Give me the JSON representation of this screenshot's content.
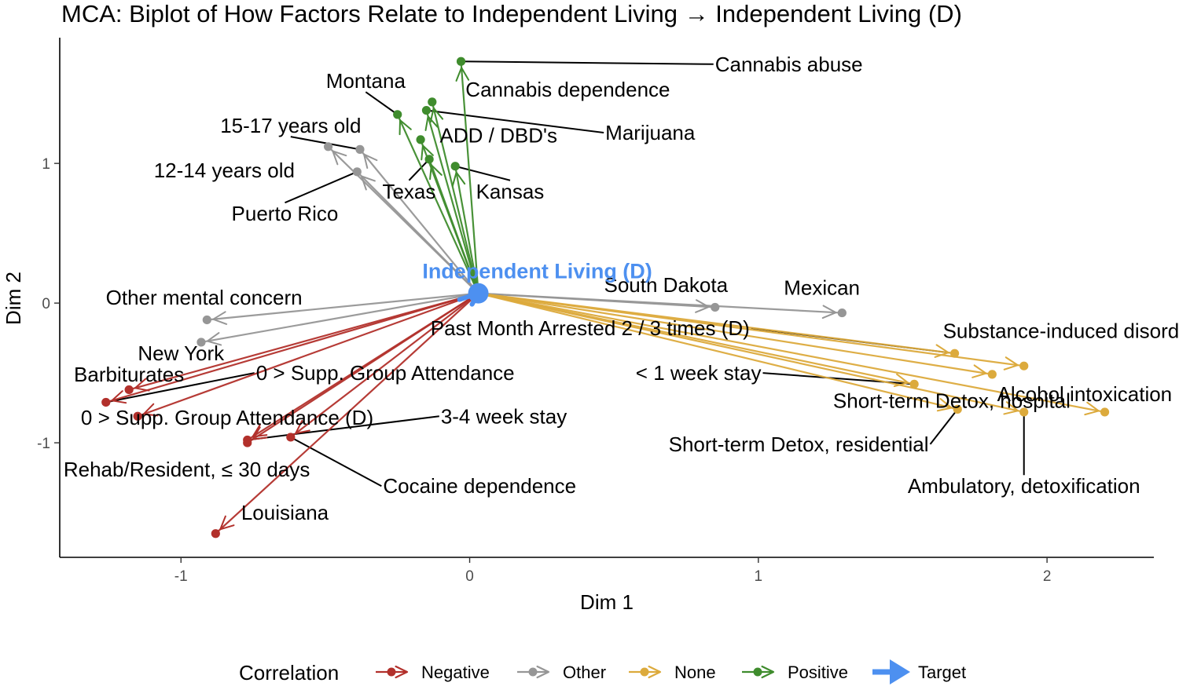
{
  "colors": {
    "Negative": "#b2302b",
    "Other": "#969696",
    "None": "#dcaa3c",
    "Positive": "#3f8c2d",
    "Target": "#4d90f0"
  },
  "chart_data": {
    "type": "scatter",
    "title": "MCA: Biplot of How Factors Relate to Independent Living → Independent Living (D)",
    "xlabel": "Dim 1",
    "ylabel": "Dim 2",
    "xlim": [
      -1.42,
      2.37
    ],
    "ylim": [
      -1.82,
      1.9
    ],
    "xticks": [
      -1,
      0,
      1,
      2
    ],
    "yticks": [
      -1,
      0,
      1
    ],
    "grid": false,
    "legend_title": "Correlation",
    "legend_position": "bottom",
    "legend": [
      "Negative",
      "Other",
      "None",
      "Positive",
      "Target"
    ],
    "target": {
      "label": "Independent Living (D)",
      "x": 0.03,
      "y": 0.07
    },
    "points": [
      {
        "label": "Cannabis abuse",
        "group": "Positive",
        "x": -0.03,
        "y": 1.73,
        "lx": 0.85,
        "ly": 1.71,
        "anchor": "start"
      },
      {
        "label": "Cannabis dependence",
        "group": "Positive",
        "x": -0.13,
        "y": 1.44,
        "lx": 0.34,
        "ly": 1.53,
        "anchor": "middle",
        "noleader": true
      },
      {
        "label": "Montana",
        "group": "Positive",
        "x": -0.25,
        "y": 1.35,
        "lx": -0.36,
        "ly": 1.59,
        "anchor": "middle"
      },
      {
        "label": "Marijuana",
        "group": "Positive",
        "x": -0.15,
        "y": 1.38,
        "lx": 0.47,
        "ly": 1.22,
        "anchor": "start"
      },
      {
        "label": "ADD / DBD's",
        "group": "Positive",
        "x": -0.17,
        "y": 1.17,
        "lx": 0.1,
        "ly": 1.2,
        "anchor": "middle",
        "noleader": true
      },
      {
        "label": "Texas",
        "group": "Positive",
        "x": -0.14,
        "y": 1.03,
        "lx": -0.21,
        "ly": 0.8,
        "anchor": "middle"
      },
      {
        "label": "Kansas",
        "group": "Positive",
        "x": -0.05,
        "y": 0.98,
        "lx": 0.14,
        "ly": 0.8,
        "anchor": "middle"
      },
      {
        "label": "15-17 years old",
        "group": "Other",
        "x": -0.38,
        "y": 1.1,
        "lx": -0.62,
        "ly": 1.27,
        "anchor": "middle"
      },
      {
        "label": "12-14 years old",
        "group": "Other",
        "x": -0.49,
        "y": 1.12,
        "lx": -0.85,
        "ly": 0.95,
        "anchor": "middle",
        "noleader": true
      },
      {
        "label": "Puerto Rico",
        "group": "Other",
        "x": -0.39,
        "y": 0.94,
        "lx": -0.64,
        "ly": 0.64,
        "anchor": "middle"
      },
      {
        "label": "South Dakota",
        "group": "Other",
        "x": 0.85,
        "y": -0.03,
        "lx": 0.68,
        "ly": 0.13,
        "anchor": "middle",
        "noleader": true
      },
      {
        "label": "Mexican",
        "group": "Other",
        "x": 1.29,
        "y": -0.07,
        "lx": 1.22,
        "ly": 0.11,
        "anchor": "middle",
        "noleader": true
      },
      {
        "label": "Other mental concern",
        "group": "Other",
        "x": -0.91,
        "y": -0.12,
        "lx": -0.92,
        "ly": 0.04,
        "anchor": "middle",
        "noleader": true
      },
      {
        "label": "New York",
        "group": "Other",
        "x": -0.93,
        "y": -0.28,
        "lx": -1.0,
        "ly": -0.36,
        "anchor": "middle",
        "noleader": true
      },
      {
        "label": "Past Month Arrested 2 / 3 times (D)",
        "group": "None",
        "x": 1.68,
        "y": -0.36,
        "lx": 0.97,
        "ly": -0.18,
        "anchor": "end"
      },
      {
        "label": "Substance-induced disorder",
        "group": "None",
        "x": 1.92,
        "y": -0.45,
        "lx": 2.08,
        "ly": -0.2,
        "anchor": "middle",
        "noleader": true
      },
      {
        "label": "< 1 week stay",
        "group": "None",
        "x": 1.54,
        "y": -0.58,
        "lx": 1.01,
        "ly": -0.5,
        "anchor": "end"
      },
      {
        "label": "Alcohol intoxication",
        "group": "None",
        "x": 1.81,
        "y": -0.51,
        "lx": 2.13,
        "ly": -0.65,
        "anchor": "middle",
        "noleader": true
      },
      {
        "label": "Short-term Detox, hospital",
        "group": "None",
        "x": 2.2,
        "y": -0.78,
        "lx": 1.67,
        "ly": -0.7,
        "anchor": "middle",
        "noleader": true
      },
      {
        "label": "Short-term Detox, residential",
        "group": "None",
        "x": 1.69,
        "y": -0.76,
        "lx": 1.59,
        "ly": -1.01,
        "anchor": "end"
      },
      {
        "label": "Ambulatory, detoxification",
        "group": "None",
        "x": 1.92,
        "y": -0.78,
        "lx": 1.92,
        "ly": -1.31,
        "anchor": "middle"
      },
      {
        "label": "Barbiturates",
        "group": "Negative",
        "x": -1.18,
        "y": -0.62,
        "lx": -1.18,
        "ly": -0.51,
        "anchor": "middle",
        "noleader": true
      },
      {
        "label": "0 > Supp. Group Attendance",
        "group": "Negative",
        "x": -1.26,
        "y": -0.71,
        "lx": -0.74,
        "ly": -0.5,
        "anchor": "start"
      },
      {
        "label": "0 > Supp. Group Attendance (D)",
        "group": "Negative",
        "x": -1.15,
        "y": -0.81,
        "lx": -0.84,
        "ly": -0.82,
        "anchor": "middle",
        "noleader": true
      },
      {
        "label": "3-4 week stay",
        "group": "Negative",
        "x": -0.77,
        "y": -0.98,
        "lx": -0.1,
        "ly": -0.81,
        "anchor": "start"
      },
      {
        "label": "Rehab/Resident, ≤ 30 days",
        "group": "Negative",
        "x": -0.77,
        "y": -1.0,
        "lx": -0.98,
        "ly": -1.19,
        "anchor": "middle",
        "noleader": true
      },
      {
        "label": "Cocaine dependence",
        "group": "Negative",
        "x": -0.62,
        "y": -0.96,
        "lx": -0.3,
        "ly": -1.31,
        "anchor": "start"
      },
      {
        "label": "Louisiana",
        "group": "Negative",
        "x": -0.88,
        "y": -1.65,
        "lx": -0.64,
        "ly": -1.5,
        "anchor": "middle",
        "noleader": true
      }
    ]
  }
}
